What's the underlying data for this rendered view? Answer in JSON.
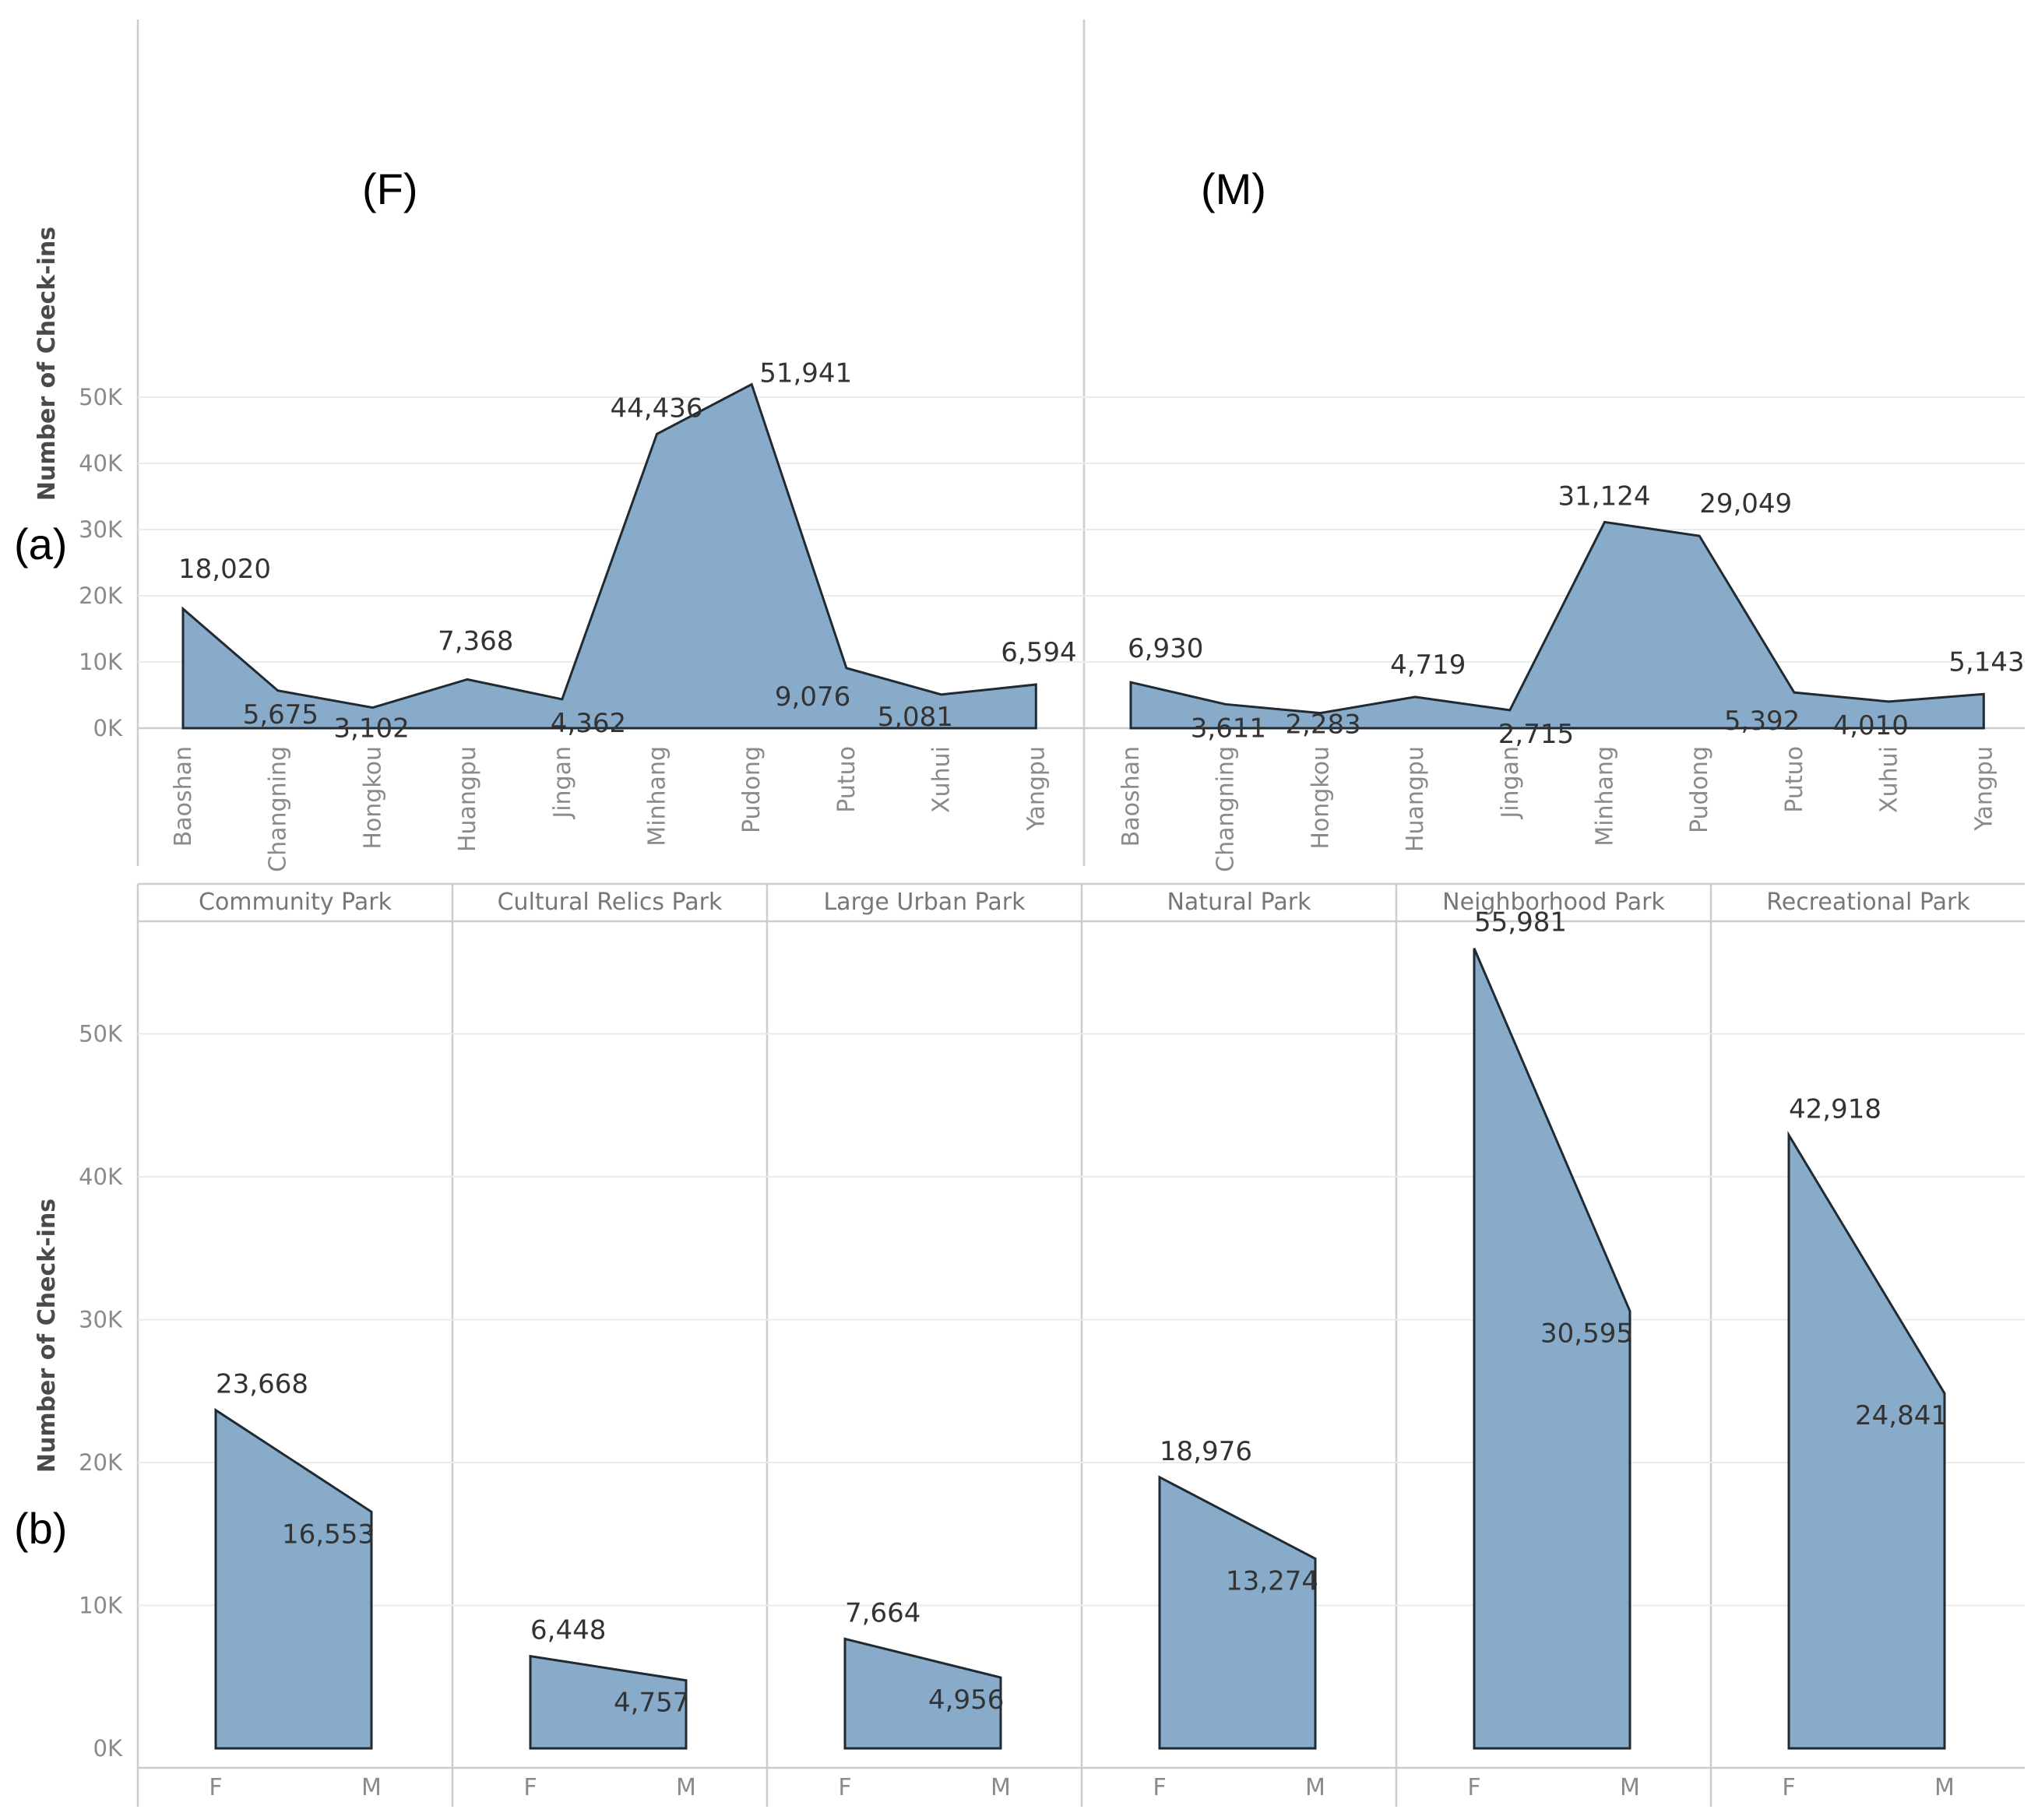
{
  "colors": {
    "fill": "#87abc9",
    "stroke": "#1f2a33",
    "grid": "#ebebeb",
    "divider": "#cccccc"
  },
  "labels": {
    "panel_a": "(a)",
    "panel_b": "(b)",
    "sub_f": "(F)",
    "sub_m": "(M)"
  },
  "chart_data": [
    {
      "type": "area",
      "panel": "(a)",
      "ylabel": "Number of Check-ins",
      "ylim": [
        0,
        52000
      ],
      "yticks": [
        0,
        10000,
        20000,
        30000,
        40000,
        50000
      ],
      "ytick_labels": [
        "0K",
        "10K",
        "20K",
        "30K",
        "40K",
        "50K"
      ],
      "categories": [
        "Baoshan",
        "Changning",
        "Hongkou",
        "Huangpu",
        "Jingan",
        "Minhang",
        "Pudong",
        "Putuo",
        "Xuhui",
        "Yangpu"
      ],
      "series": [
        {
          "name": "(F)",
          "values": [
            18020,
            5675,
            3102,
            7368,
            4362,
            44436,
            51941,
            9076,
            5081,
            6594
          ],
          "labels": [
            "18,020",
            "5,675",
            "3,102",
            "7,368",
            "4,362",
            "44,436",
            "51,941",
            "9,076",
            "5,081",
            "6,594"
          ]
        },
        {
          "name": "(M)",
          "values": [
            6930,
            3611,
            2283,
            4719,
            2715,
            31124,
            29049,
            5392,
            4010,
            5143
          ],
          "labels": [
            "6,930",
            "3,611",
            "2,283",
            "4,719",
            "2,715",
            "31,124",
            "29,049",
            "5,392",
            "4,010",
            "5,143"
          ]
        }
      ]
    },
    {
      "type": "area",
      "panel": "(b)",
      "ylabel": "Number of Check-ins",
      "ylim": [
        0,
        58000
      ],
      "yticks": [
        0,
        10000,
        20000,
        30000,
        40000,
        50000
      ],
      "ytick_labels": [
        "0K",
        "10K",
        "20K",
        "30K",
        "40K",
        "50K"
      ],
      "categories": [
        "F",
        "M"
      ],
      "facets": [
        {
          "name": "Community Park",
          "values": [
            23668,
            16553
          ],
          "labels": [
            "23,668",
            "16,553"
          ]
        },
        {
          "name": "Cultural Relics Park",
          "values": [
            6448,
            4757
          ],
          "labels": [
            "6,448",
            "4,757"
          ]
        },
        {
          "name": "Large Urban Park",
          "values": [
            7664,
            4956
          ],
          "labels": [
            "7,664",
            "4,956"
          ]
        },
        {
          "name": "Natural Park",
          "values": [
            18976,
            13274
          ],
          "labels": [
            "18,976",
            "13,274"
          ]
        },
        {
          "name": "Neighborhood Park",
          "values": [
            55981,
            30595
          ],
          "labels": [
            "55,981",
            "30,595"
          ]
        },
        {
          "name": "Recreational Park",
          "values": [
            42918,
            24841
          ],
          "labels": [
            "42,918",
            "24,841"
          ]
        }
      ]
    }
  ]
}
